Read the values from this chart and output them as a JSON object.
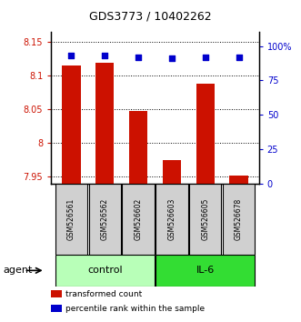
{
  "title": "GDS3773 / 10402262",
  "samples": [
    "GSM526561",
    "GSM526562",
    "GSM526602",
    "GSM526603",
    "GSM526605",
    "GSM526678"
  ],
  "red_values": [
    8.115,
    8.12,
    8.048,
    7.975,
    8.088,
    7.952
  ],
  "blue_values": [
    93,
    93,
    92,
    91,
    92,
    92
  ],
  "ylim_left": [
    7.94,
    8.165
  ],
  "ylim_right": [
    0,
    110
  ],
  "yticks_left": [
    7.95,
    8.0,
    8.05,
    8.1,
    8.15
  ],
  "ytick_labels_left": [
    "7.95",
    "8",
    "8.05",
    "8.1",
    "8.15"
  ],
  "yticks_right": [
    0,
    25,
    50,
    75,
    100
  ],
  "ytick_labels_right": [
    "0",
    "25",
    "50",
    "75",
    "100%"
  ],
  "groups": [
    {
      "label": "control",
      "indices": [
        0,
        1,
        2
      ],
      "color": "#b8ffb8"
    },
    {
      "label": "IL-6",
      "indices": [
        3,
        4,
        5
      ],
      "color": "#33dd33"
    }
  ],
  "agent_label": "agent",
  "bar_color": "#cc1100",
  "dot_color": "#0000cc",
  "bar_width": 0.55,
  "tick_color_left": "#cc1100",
  "tick_color_right": "#0000cc",
  "legend_items": [
    {
      "color": "#cc1100",
      "label": "transformed count"
    },
    {
      "color": "#0000cc",
      "label": "percentile rank within the sample"
    }
  ],
  "sample_box_color": "#d0d0d0"
}
